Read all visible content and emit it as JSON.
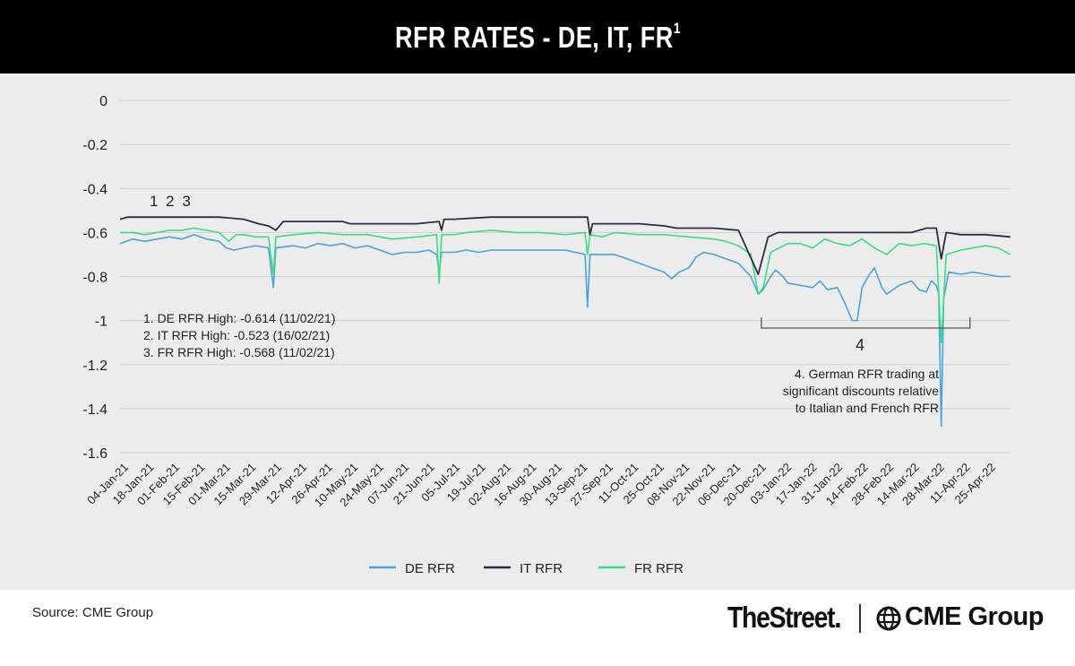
{
  "title": {
    "main": "RFR RATES - DE, IT, FR",
    "superscript": "1"
  },
  "colors": {
    "de": "#4aa3dc",
    "it": "#2a3040",
    "fr": "#3ddc84",
    "grid": "#d0d0d0",
    "panel": "#ececec"
  },
  "chart_data": {
    "type": "line",
    "title": "RFR RATES - DE, IT, FR",
    "ylim": [
      -1.6,
      0
    ],
    "yticks": [
      "0",
      "-0.2",
      "-0.4",
      "-0.6",
      "-0.8",
      "-1",
      "-1.2",
      "-1.4",
      "-1.6"
    ],
    "ytick_values": [
      0,
      -0.2,
      -0.4,
      -0.6,
      -0.8,
      -1,
      -1.2,
      -1.4,
      -1.6
    ],
    "x_categories": [
      "04-Jan-21",
      "18-Jan-21",
      "01-Feb-21",
      "15-Feb-21",
      "01-Mar-21",
      "15-Mar-21",
      "29-Mar-21",
      "12-Apr-21",
      "26-Apr-21",
      "10-May-21",
      "24-May-21",
      "07-Jun-21",
      "21-Jun-21",
      "05-Jul-21",
      "19-Jul-21",
      "02-Aug-21",
      "16-Aug-21",
      "30-Aug-21",
      "13-Sep-21",
      "27-Sep-21",
      "11-Oct-21",
      "25-Oct-21",
      "08-Nov-21",
      "22-Nov-21",
      "06-Dec-21",
      "20-Dec-21",
      "03-Jan-22",
      "17-Jan-22",
      "31-Jan-22",
      "14-Feb-22",
      "28-Feb-22",
      "14-Mar-22",
      "28-Mar-22",
      "11-Apr-22",
      "25-Apr-22"
    ],
    "series": [
      {
        "name": "DE RFR",
        "key": "de",
        "points": [
          [
            0,
            -0.65
          ],
          [
            0.5,
            -0.63
          ],
          [
            1,
            -0.64
          ],
          [
            1.5,
            -0.63
          ],
          [
            2,
            -0.62
          ],
          [
            2.5,
            -0.63
          ],
          [
            3,
            -0.61
          ],
          [
            3.5,
            -0.63
          ],
          [
            4,
            -0.64
          ],
          [
            4.3,
            -0.67
          ],
          [
            4.6,
            -0.68
          ],
          [
            5,
            -0.67
          ],
          [
            5.5,
            -0.66
          ],
          [
            6,
            -0.67
          ],
          [
            6.2,
            -0.85
          ],
          [
            6.3,
            -0.67
          ],
          [
            7,
            -0.66
          ],
          [
            7.5,
            -0.67
          ],
          [
            8,
            -0.65
          ],
          [
            8.5,
            -0.66
          ],
          [
            9,
            -0.65
          ],
          [
            9.5,
            -0.67
          ],
          [
            10,
            -0.66
          ],
          [
            10.5,
            -0.68
          ],
          [
            11,
            -0.7
          ],
          [
            11.5,
            -0.69
          ],
          [
            12,
            -0.69
          ],
          [
            12.5,
            -0.68
          ],
          [
            12.8,
            -0.7
          ],
          [
            12.9,
            -0.78
          ],
          [
            13,
            -0.69
          ],
          [
            13.5,
            -0.69
          ],
          [
            14,
            -0.68
          ],
          [
            14.5,
            -0.69
          ],
          [
            15,
            -0.68
          ],
          [
            16,
            -0.68
          ],
          [
            17,
            -0.68
          ],
          [
            18,
            -0.68
          ],
          [
            18.8,
            -0.7
          ],
          [
            18.9,
            -0.94
          ],
          [
            19,
            -0.7
          ],
          [
            19.5,
            -0.7
          ],
          [
            20,
            -0.7
          ],
          [
            20.5,
            -0.72
          ],
          [
            21,
            -0.74
          ],
          [
            21.5,
            -0.76
          ],
          [
            22,
            -0.78
          ],
          [
            22.3,
            -0.81
          ],
          [
            22.6,
            -0.78
          ],
          [
            23,
            -0.76
          ],
          [
            23.3,
            -0.71
          ],
          [
            23.6,
            -0.69
          ],
          [
            24,
            -0.7
          ],
          [
            24.5,
            -0.72
          ],
          [
            25,
            -0.74
          ],
          [
            25.5,
            -0.8
          ],
          [
            25.8,
            -0.88
          ],
          [
            26,
            -0.86
          ],
          [
            26.3,
            -0.8
          ],
          [
            26.5,
            -0.77
          ],
          [
            26.8,
            -0.8
          ],
          [
            27,
            -0.83
          ],
          [
            27.5,
            -0.84
          ],
          [
            28,
            -0.85
          ],
          [
            28.3,
            -0.82
          ],
          [
            28.6,
            -0.86
          ],
          [
            29,
            -0.85
          ],
          [
            29.3,
            -0.92
          ],
          [
            29.6,
            -1.0
          ],
          [
            29.8,
            -1.0
          ],
          [
            30,
            -0.85
          ],
          [
            30.3,
            -0.79
          ],
          [
            30.5,
            -0.76
          ],
          [
            30.8,
            -0.85
          ],
          [
            31,
            -0.88
          ],
          [
            31.5,
            -0.84
          ],
          [
            32,
            -0.82
          ],
          [
            32.3,
            -0.86
          ],
          [
            32.6,
            -0.87
          ],
          [
            32.8,
            -0.82
          ],
          [
            33,
            -0.84
          ],
          [
            33.1,
            -0.88
          ],
          [
            33.2,
            -1.48
          ],
          [
            33.3,
            -0.9
          ],
          [
            33.5,
            -0.78
          ],
          [
            34,
            -0.79
          ],
          [
            34.5,
            -0.78
          ],
          [
            35,
            -0.79
          ],
          [
            35.5,
            -0.8
          ],
          [
            36,
            -0.8
          ]
        ]
      },
      {
        "name": "IT RFR",
        "key": "it",
        "points": [
          [
            0,
            -0.54
          ],
          [
            0.3,
            -0.53
          ],
          [
            3,
            -0.53
          ],
          [
            4,
            -0.53
          ],
          [
            5,
            -0.54
          ],
          [
            5.6,
            -0.56
          ],
          [
            6,
            -0.57
          ],
          [
            6.3,
            -0.59
          ],
          [
            6.6,
            -0.55
          ],
          [
            8,
            -0.55
          ],
          [
            9,
            -0.55
          ],
          [
            9.3,
            -0.56
          ],
          [
            12,
            -0.56
          ],
          [
            12.9,
            -0.55
          ],
          [
            13,
            -0.59
          ],
          [
            13.1,
            -0.54
          ],
          [
            13.5,
            -0.54
          ],
          [
            15,
            -0.53
          ],
          [
            18,
            -0.53
          ],
          [
            18.9,
            -0.53
          ],
          [
            19,
            -0.61
          ],
          [
            19.1,
            -0.56
          ],
          [
            19.6,
            -0.56
          ],
          [
            21,
            -0.56
          ],
          [
            22,
            -0.57
          ],
          [
            22.5,
            -0.58
          ],
          [
            24,
            -0.58
          ],
          [
            25,
            -0.59
          ],
          [
            25.8,
            -0.79
          ],
          [
            26.2,
            -0.62
          ],
          [
            26.6,
            -0.6
          ],
          [
            28,
            -0.6
          ],
          [
            30,
            -0.6
          ],
          [
            31,
            -0.6
          ],
          [
            32,
            -0.6
          ],
          [
            32.6,
            -0.58
          ],
          [
            33,
            -0.58
          ],
          [
            33.2,
            -0.72
          ],
          [
            33.4,
            -0.6
          ],
          [
            34,
            -0.61
          ],
          [
            35,
            -0.61
          ],
          [
            36,
            -0.62
          ]
        ]
      },
      {
        "name": "FR RFR",
        "key": "fr",
        "points": [
          [
            0,
            -0.6
          ],
          [
            0.5,
            -0.6
          ],
          [
            1,
            -0.61
          ],
          [
            1.5,
            -0.6
          ],
          [
            2,
            -0.59
          ],
          [
            2.5,
            -0.59
          ],
          [
            3,
            -0.58
          ],
          [
            3.5,
            -0.59
          ],
          [
            4,
            -0.6
          ],
          [
            4.4,
            -0.64
          ],
          [
            4.7,
            -0.61
          ],
          [
            5,
            -0.61
          ],
          [
            5.5,
            -0.62
          ],
          [
            6,
            -0.62
          ],
          [
            6.2,
            -0.79
          ],
          [
            6.3,
            -0.62
          ],
          [
            7,
            -0.61
          ],
          [
            8,
            -0.6
          ],
          [
            9,
            -0.61
          ],
          [
            10,
            -0.61
          ],
          [
            10.5,
            -0.62
          ],
          [
            11,
            -0.63
          ],
          [
            12,
            -0.62
          ],
          [
            12.8,
            -0.61
          ],
          [
            12.9,
            -0.83
          ],
          [
            13,
            -0.61
          ],
          [
            13.5,
            -0.61
          ],
          [
            14,
            -0.6
          ],
          [
            15,
            -0.59
          ],
          [
            16,
            -0.6
          ],
          [
            17,
            -0.6
          ],
          [
            18,
            -0.61
          ],
          [
            18.8,
            -0.6
          ],
          [
            18.9,
            -0.7
          ],
          [
            19,
            -0.61
          ],
          [
            19.5,
            -0.62
          ],
          [
            20,
            -0.6
          ],
          [
            21,
            -0.61
          ],
          [
            22,
            -0.61
          ],
          [
            23,
            -0.62
          ],
          [
            24,
            -0.63
          ],
          [
            24.5,
            -0.64
          ],
          [
            25,
            -0.66
          ],
          [
            25.5,
            -0.7
          ],
          [
            25.8,
            -0.88
          ],
          [
            26,
            -0.85
          ],
          [
            26.3,
            -0.69
          ],
          [
            27,
            -0.65
          ],
          [
            27.5,
            -0.65
          ],
          [
            28,
            -0.67
          ],
          [
            28.5,
            -0.63
          ],
          [
            29,
            -0.65
          ],
          [
            29.5,
            -0.66
          ],
          [
            30,
            -0.63
          ],
          [
            30.5,
            -0.67
          ],
          [
            31,
            -0.7
          ],
          [
            31.5,
            -0.65
          ],
          [
            32,
            -0.66
          ],
          [
            32.5,
            -0.65
          ],
          [
            33,
            -0.66
          ],
          [
            33.2,
            -1.1
          ],
          [
            33.4,
            -0.7
          ],
          [
            34,
            -0.68
          ],
          [
            35,
            -0.66
          ],
          [
            35.5,
            -0.67
          ],
          [
            36,
            -0.7
          ]
        ]
      }
    ],
    "x_max": 36,
    "annotations": {
      "top_marker": "1 2 3",
      "notes": [
        "1. DE RFR High: -0.614 (11/02/21)",
        "2. IT RFR High: -0.523 (16/02/21)",
        "3. FR RFR High: -0.568 (11/02/21)"
      ],
      "bracket_label": "4",
      "note4": [
        "4. German RFR trading at",
        "significant discounts relative",
        "to Italian and French RFR"
      ],
      "bracket_range": [
        26,
        34
      ]
    },
    "legend": {
      "position": "bottom-center",
      "items": [
        "DE RFR",
        "IT RFR",
        "FR RFR"
      ]
    }
  },
  "footer": {
    "source": "Source: CME Group",
    "brand_a": "TheStreet",
    "brand_b": "CME Group"
  }
}
